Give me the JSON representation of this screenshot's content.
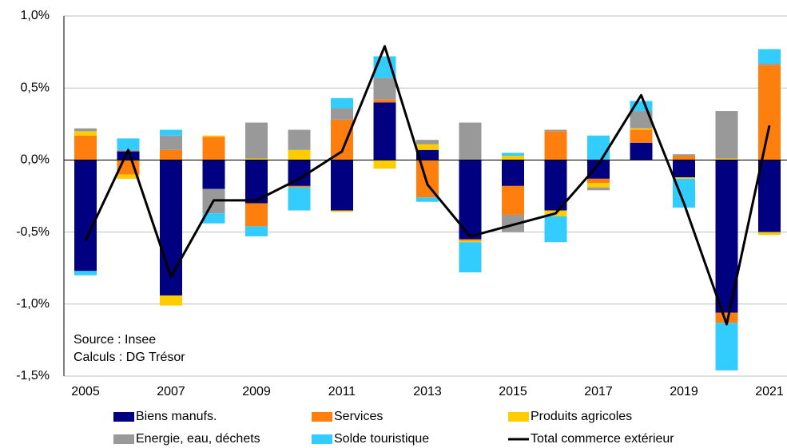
{
  "chart_data": {
    "type": "bar",
    "stacked": true,
    "categories": [
      "2005",
      null,
      "2007",
      null,
      "2009",
      null,
      "2011",
      null,
      "2013",
      null,
      "2015",
      null,
      "2017",
      null,
      "2019",
      null,
      "2021"
    ],
    "series": [
      {
        "name": "Biens manufs.",
        "color": "#000080",
        "values": [
          -0.77,
          0.06,
          -0.94,
          -0.2,
          -0.3,
          -0.18,
          -0.35,
          0.4,
          0.07,
          -0.55,
          -0.18,
          -0.35,
          -0.13,
          0.12,
          -0.12,
          -1.06,
          -0.5
        ]
      },
      {
        "name": "Services",
        "color": "#ff7f0e",
        "values": [
          0.17,
          -0.1,
          0.07,
          0.16,
          -0.16,
          -0.01,
          0.28,
          0.02,
          -0.26,
          -0.01,
          -0.2,
          0.2,
          -0.03,
          0.09,
          0.03,
          -0.07,
          0.66
        ]
      },
      {
        "name": "Produits agricoles",
        "color": "#ffcc00",
        "values": [
          0.03,
          -0.03,
          -0.07,
          0.01,
          0.01,
          0.07,
          -0.01,
          -0.06,
          0.04,
          -0.01,
          0.03,
          -0.04,
          -0.03,
          0.01,
          -0.01,
          0.01,
          -0.02
        ]
      },
      {
        "name": "Energie, eau, déchets",
        "color": "#999999",
        "values": [
          0.02,
          0.01,
          0.1,
          -0.17,
          0.25,
          0.14,
          0.08,
          0.15,
          0.03,
          0.26,
          -0.12,
          0.01,
          -0.02,
          0.12,
          0.01,
          0.33,
          0.01
        ]
      },
      {
        "name": "Solde touristique",
        "color": "#33ccff",
        "values": [
          -0.03,
          0.08,
          0.04,
          -0.07,
          -0.07,
          -0.16,
          0.07,
          0.15,
          -0.03,
          -0.21,
          0.02,
          -0.18,
          0.17,
          0.07,
          -0.2,
          -0.33,
          0.1
        ]
      },
      {
        "name": "Total commerce extérieur",
        "type": "line",
        "color": "#000000",
        "values": [
          -0.56,
          0.07,
          -0.81,
          -0.28,
          -0.28,
          -0.13,
          0.06,
          0.79,
          -0.17,
          -0.53,
          -0.45,
          -0.37,
          -0.03,
          0.45,
          -0.3,
          -1.14,
          0.24
        ]
      }
    ],
    "ylim": [
      -1.5,
      1.0
    ],
    "yticks": [
      {
        "value": -1.5,
        "label": "-1,5%"
      },
      {
        "value": -1.0,
        "label": "-1,0%"
      },
      {
        "value": -0.5,
        "label": "-0,5%"
      },
      {
        "value": 0,
        "label": "0,0%"
      },
      {
        "value": 0.5,
        "label": "0,5%"
      },
      {
        "value": 1.0,
        "label": "1,0%"
      }
    ],
    "grid": true,
    "annotations": [
      "Source : Insee",
      "Calculs : DG Trésor"
    ],
    "legend": "bottom"
  }
}
